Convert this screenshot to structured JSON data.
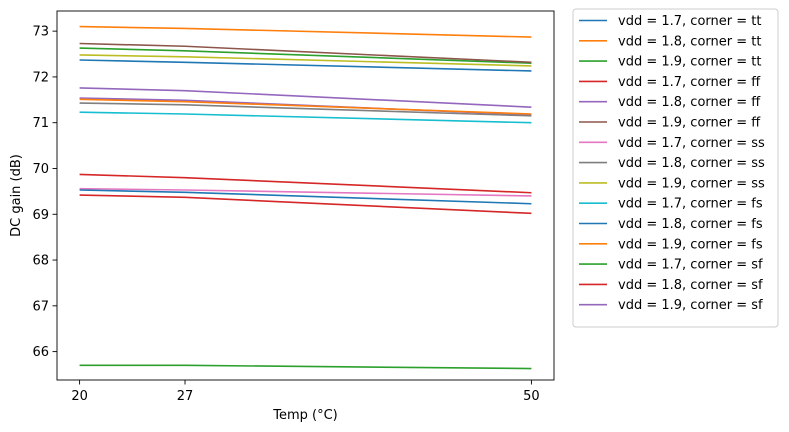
{
  "chart_data": {
    "type": "line",
    "xlabel": "Temp (°C)",
    "ylabel": "DC gain (dB)",
    "x": [
      20,
      27,
      50
    ],
    "xticks": [
      20,
      27,
      50
    ],
    "yticks": [
      66,
      67,
      68,
      69,
      70,
      71,
      72,
      73
    ],
    "xlim": [
      18.5,
      51.5
    ],
    "ylim": [
      65.38,
      73.44
    ],
    "grid": false,
    "legend_position": "outside-right",
    "series": [
      {
        "name": "vdd = 1.7, corner = tt",
        "color": "#1f77b4",
        "values": [
          72.37,
          72.32,
          72.13
        ]
      },
      {
        "name": "vdd = 1.8, corner = tt",
        "color": "#ff7f0e",
        "values": [
          73.1,
          73.06,
          72.87
        ]
      },
      {
        "name": "vdd = 1.9, corner = tt",
        "color": "#2ca02c",
        "values": [
          72.63,
          72.57,
          72.3
        ]
      },
      {
        "name": "vdd = 1.7, corner = ff",
        "color": "#d62728",
        "values": [
          69.42,
          69.37,
          69.02
        ]
      },
      {
        "name": "vdd = 1.8, corner = ff",
        "color": "#9467bd",
        "values": [
          71.54,
          71.49,
          71.17
        ]
      },
      {
        "name": "vdd = 1.9, corner = ff",
        "color": "#8c564b",
        "values": [
          72.73,
          72.67,
          72.32
        ]
      },
      {
        "name": "vdd = 1.7, corner = ss",
        "color": "#e377c2",
        "values": [
          69.56,
          69.53,
          69.4
        ]
      },
      {
        "name": "vdd = 1.8, corner = ss",
        "color": "#7f7f7f",
        "values": [
          71.43,
          71.39,
          71.15
        ]
      },
      {
        "name": "vdd = 1.9, corner = ss",
        "color": "#bcbd22",
        "values": [
          72.48,
          72.44,
          72.24
        ]
      },
      {
        "name": "vdd = 1.7, corner = fs",
        "color": "#17becf",
        "values": [
          71.23,
          71.19,
          71.0
        ]
      },
      {
        "name": "vdd = 1.8, corner = fs",
        "color": "#1f77b4",
        "values": [
          69.53,
          69.48,
          69.23
        ]
      },
      {
        "name": "vdd = 1.9, corner = fs",
        "color": "#ff7f0e",
        "values": [
          71.51,
          71.46,
          71.19
        ]
      },
      {
        "name": "vdd = 1.7, corner = sf",
        "color": "#2ca02c",
        "values": [
          65.7,
          65.7,
          65.63
        ]
      },
      {
        "name": "vdd = 1.8, corner = sf",
        "color": "#d62728",
        "values": [
          69.87,
          69.8,
          69.47
        ]
      },
      {
        "name": "vdd = 1.9, corner = sf",
        "color": "#9467bd",
        "values": [
          71.76,
          71.7,
          71.34
        ]
      }
    ]
  }
}
